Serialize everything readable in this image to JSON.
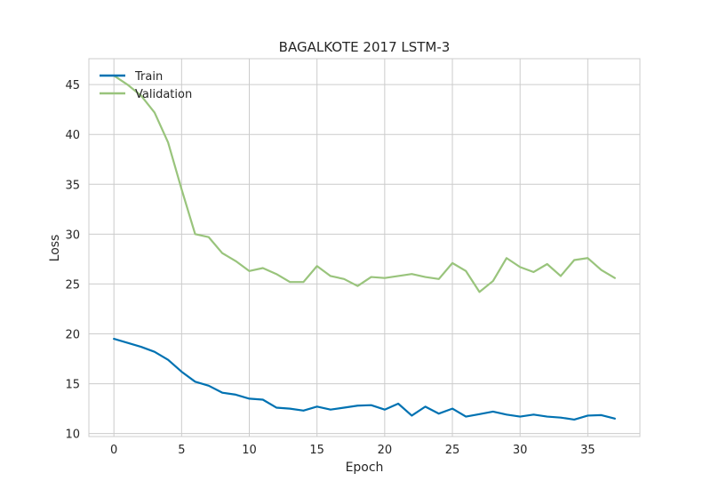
{
  "chart_data": {
    "type": "line",
    "title": "BAGALKOTE 2017 LSTM-3",
    "xlabel": "Epoch",
    "ylabel": "Loss",
    "xlim": [
      -1.85,
      38.85
    ],
    "ylim": [
      9.7,
      47.6
    ],
    "xticks": [
      0,
      5,
      10,
      15,
      20,
      25,
      30,
      35
    ],
    "yticks": [
      10,
      15,
      20,
      25,
      30,
      35,
      40,
      45
    ],
    "grid": true,
    "legend_position": "top-left",
    "x": [
      0,
      1,
      2,
      3,
      4,
      5,
      6,
      7,
      8,
      9,
      10,
      11,
      12,
      13,
      14,
      15,
      16,
      17,
      18,
      19,
      20,
      21,
      22,
      23,
      24,
      25,
      26,
      27,
      28,
      29,
      30,
      31,
      32,
      33,
      34,
      35,
      36,
      37
    ],
    "series": [
      {
        "name": "Train",
        "color": "#0072B2",
        "values": [
          19.5,
          19.1,
          18.7,
          18.2,
          17.4,
          16.2,
          15.2,
          14.8,
          14.1,
          13.9,
          13.5,
          13.4,
          12.6,
          12.5,
          12.3,
          12.7,
          12.4,
          12.6,
          12.8,
          12.85,
          12.4,
          13.0,
          11.8,
          12.7,
          12.0,
          12.5,
          11.7,
          11.95,
          12.2,
          11.9,
          11.7,
          11.9,
          11.7,
          11.6,
          11.4,
          11.8,
          11.85,
          11.5
        ]
      },
      {
        "name": "Validation",
        "color": "#99C47C",
        "values": [
          45.9,
          45.0,
          43.9,
          42.2,
          39.2,
          34.5,
          30.0,
          29.7,
          28.1,
          27.3,
          26.3,
          26.6,
          26.0,
          25.2,
          25.2,
          26.8,
          25.8,
          25.5,
          24.8,
          25.7,
          25.6,
          25.8,
          26.0,
          25.7,
          25.5,
          27.1,
          26.3,
          24.2,
          25.3,
          27.6,
          26.7,
          26.2,
          27.0,
          25.8,
          27.4,
          27.6,
          26.4,
          25.6
        ]
      }
    ]
  }
}
